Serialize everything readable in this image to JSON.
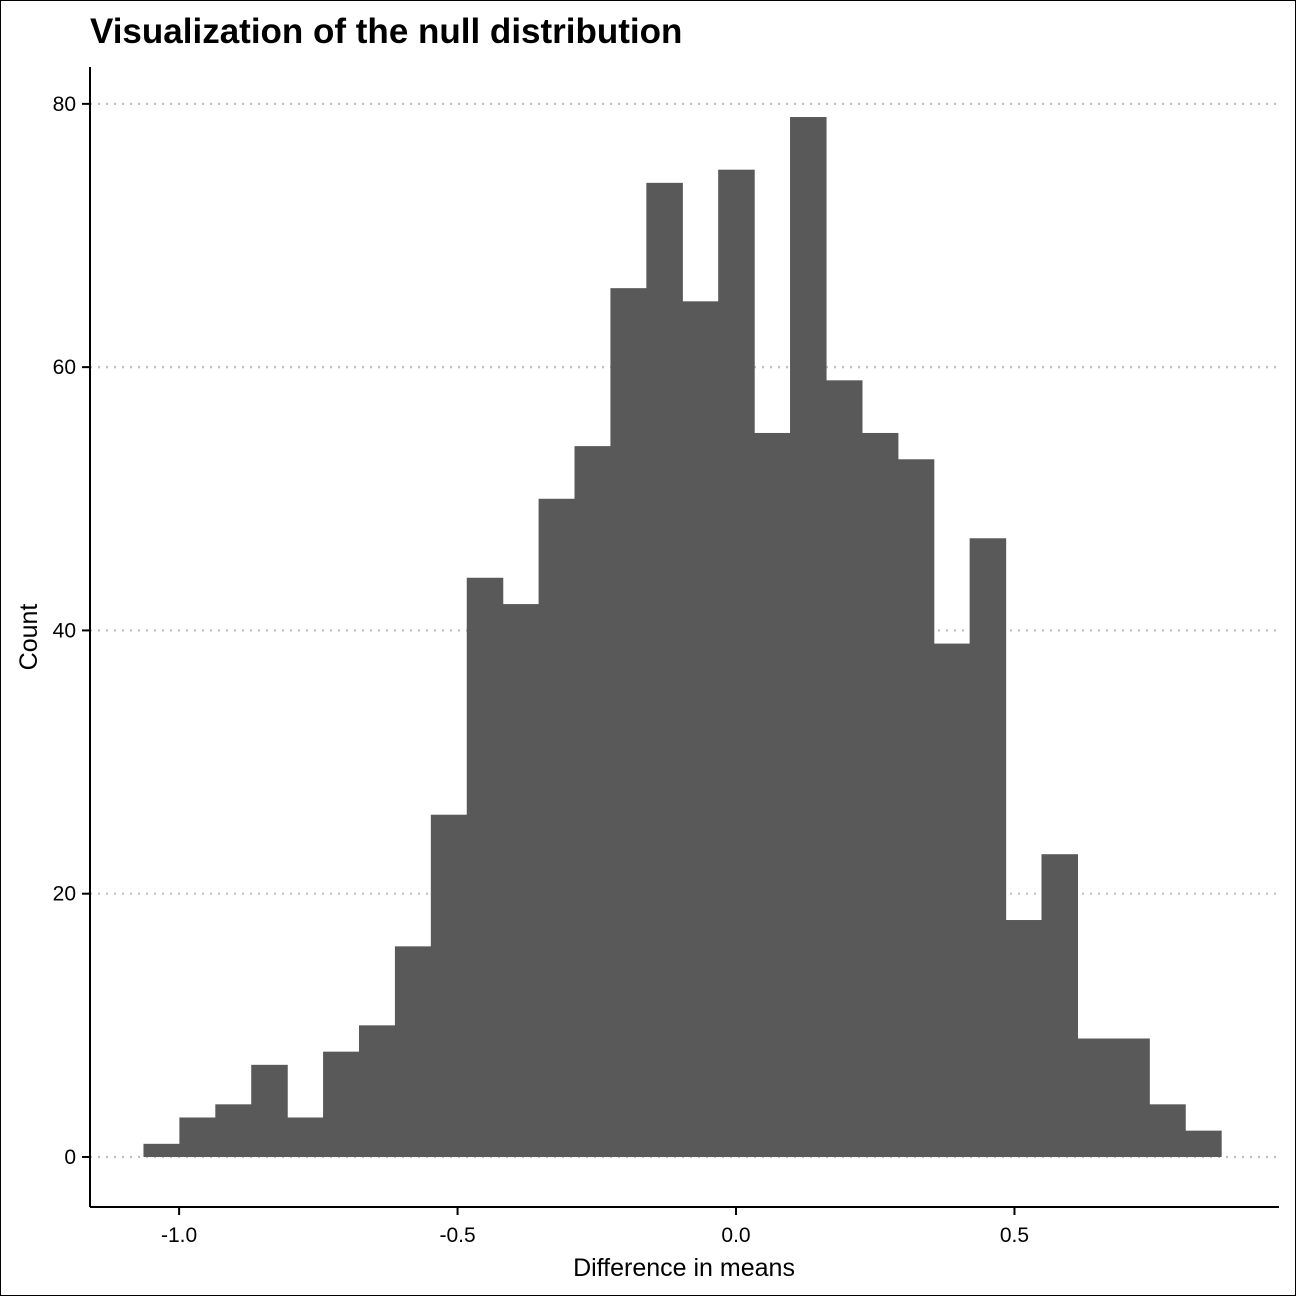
{
  "chart_data": {
    "type": "bar",
    "title": "Visualization of the null distribution",
    "xlabel": "Difference in means",
    "ylabel": "Count",
    "bar_color": "#595959",
    "grid_color": "#BEBEBE",
    "grid": "horizontal dotted",
    "xlim": [
      -1.16,
      0.975
    ],
    "ylim": [
      -3.8,
      82.8
    ],
    "x_ticks": [
      -1.0,
      -0.5,
      0.0,
      0.5
    ],
    "x_tick_labels": [
      "-1.0",
      "-0.5",
      "0.0",
      "0.5"
    ],
    "y_ticks": [
      0,
      20,
      40,
      60,
      80
    ],
    "y_tick_labels": [
      "0",
      "20",
      "40",
      "60",
      "80"
    ],
    "bin_start": -1.064,
    "bin_width": 0.0645,
    "values": [
      1,
      3,
      4,
      7,
      3,
      8,
      10,
      16,
      26,
      44,
      42,
      50,
      54,
      66,
      74,
      65,
      75,
      55,
      79,
      59,
      55,
      53,
      39,
      47,
      18,
      23,
      9,
      9,
      4,
      2
    ]
  }
}
